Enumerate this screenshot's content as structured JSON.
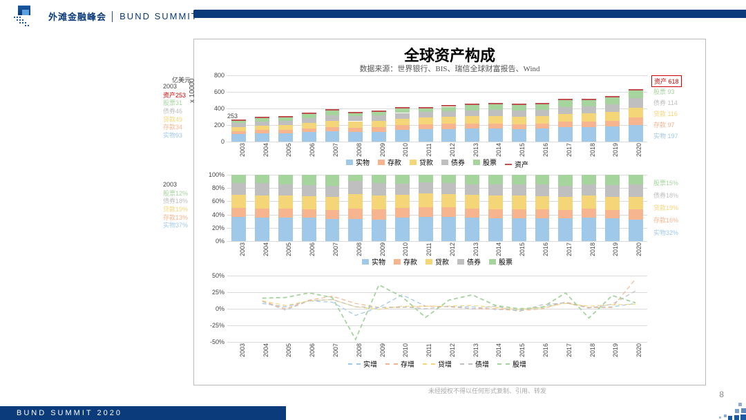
{
  "header": {
    "cn": "外滩金融峰会",
    "en": "BUND SUMMIT"
  },
  "title": "全球资产构成",
  "source": "数据来源：世界银行、BIS、瑞信全球财富报告、Wind",
  "y_unit": "亿美元",
  "y_mult": "x 10000",
  "years": [
    "2003",
    "2004",
    "2005",
    "2006",
    "2007",
    "2008",
    "2009",
    "2010",
    "2011",
    "2012",
    "2013",
    "2014",
    "2015",
    "2016",
    "2017",
    "2018",
    "2019",
    "2020"
  ],
  "palette": {
    "实物": "#a0c8e8",
    "存款": "#f6b58f",
    "贷款": "#f4d679",
    "债券": "#bfbfbf",
    "股票": "#a5d49d",
    "资产": "#c0504d",
    "grid": "#d9d9d9",
    "text": "#444"
  },
  "chart1": {
    "type": "stacked-bar-abs",
    "ylim": [
      0,
      800
    ],
    "ytick_step": 200,
    "first_label": "253",
    "series_order": [
      "实物",
      "存款",
      "贷款",
      "债券",
      "股票"
    ],
    "data": {
      "实物": [
        93,
        101,
        104,
        116,
        128,
        115,
        117,
        142,
        148,
        152,
        157,
        156,
        153,
        157,
        173,
        176,
        182,
        197
      ],
      "存款": [
        34,
        38,
        38,
        43,
        51,
        55,
        56,
        57,
        59,
        61,
        61,
        61,
        59,
        59,
        65,
        66,
        67,
        97
      ],
      "贷款": [
        49,
        55,
        58,
        65,
        74,
        76,
        75,
        78,
        81,
        84,
        88,
        90,
        89,
        91,
        98,
        102,
        108,
        116
      ],
      "债券": [
        46,
        51,
        50,
        56,
        64,
        66,
        67,
        69,
        69,
        72,
        72,
        75,
        72,
        76,
        83,
        84,
        90,
        114
      ],
      "股票": [
        31,
        36,
        42,
        52,
        61,
        33,
        45,
        53,
        46,
        52,
        63,
        66,
        66,
        67,
        83,
        71,
        85,
        93
      ]
    },
    "end_labels": [
      {
        "txt": "资产 618",
        "color": "#c00",
        "red": true
      },
      {
        "txt": "股票 93",
        "color": "#a5d49d"
      },
      {
        "txt": "债券 114",
        "color": "#bfbfbf"
      },
      {
        "txt": "贷款 116",
        "color": "#f4d679"
      },
      {
        "txt": "存款 97",
        "color": "#f6b58f"
      },
      {
        "txt": "实物 197",
        "color": "#a0c8e8"
      }
    ],
    "left_2003": {
      "title": "2003",
      "rows": [
        {
          "txt": "资产253",
          "color": "#c00"
        },
        {
          "txt": "股票31",
          "color": "#a5d49d"
        },
        {
          "txt": "债券46",
          "color": "#bfbfbf"
        },
        {
          "txt": "贷款49",
          "color": "#f4d679"
        },
        {
          "txt": "存款34",
          "color": "#f6b58f"
        },
        {
          "txt": "实物93",
          "color": "#a0c8e8"
        }
      ]
    }
  },
  "chart2": {
    "type": "stacked-bar-pct",
    "ylim": [
      0,
      100
    ],
    "ytick_step": 20,
    "series_order": [
      "实物",
      "存款",
      "贷款",
      "债券",
      "股票"
    ],
    "end_labels": [
      {
        "txt": "股票15%",
        "color": "#a5d49d"
      },
      {
        "txt": "债券18%",
        "color": "#bfbfbf"
      },
      {
        "txt": "贷款19%",
        "color": "#f4d679"
      },
      {
        "txt": "存款16%",
        "color": "#f6b58f"
      },
      {
        "txt": "实物32%",
        "color": "#a0c8e8"
      }
    ],
    "left_2003": {
      "title": "2003",
      "rows": [
        {
          "txt": "股票12%",
          "color": "#a5d49d"
        },
        {
          "txt": "债券18%",
          "color": "#bfbfbf"
        },
        {
          "txt": "贷款19%",
          "color": "#f4d679"
        },
        {
          "txt": "存款13%",
          "color": "#f6b58f"
        },
        {
          "txt": "实物37%",
          "color": "#a0c8e8"
        }
      ]
    }
  },
  "chart3": {
    "type": "line-growth",
    "ylim": [
      -50,
      50
    ],
    "ytick_step": 25,
    "series": {
      "实增": {
        "color": "#a0c8e8",
        "dash": "6,4",
        "values": [
          null,
          8,
          3,
          12,
          10,
          -10,
          2,
          21,
          4,
          3,
          3,
          -1,
          -2,
          3,
          10,
          2,
          3,
          8
        ]
      },
      "存增": {
        "color": "#f6b58f",
        "dash": "6,4",
        "values": [
          null,
          12,
          0,
          13,
          19,
          8,
          2,
          2,
          4,
          3,
          0,
          0,
          -3,
          0,
          10,
          2,
          2,
          45
        ]
      },
      "贷增": {
        "color": "#f4d679",
        "dash": "6,4",
        "values": [
          null,
          12,
          5,
          12,
          14,
          3,
          -1,
          4,
          4,
          4,
          5,
          2,
          -1,
          2,
          8,
          4,
          6,
          7
        ]
      },
      "债增": {
        "color": "#bfbfbf",
        "dash": "6,4",
        "values": [
          null,
          11,
          -2,
          12,
          14,
          3,
          2,
          3,
          0,
          4,
          0,
          4,
          -4,
          6,
          9,
          1,
          7,
          27
        ]
      },
      "股增": {
        "color": "#a5d49d",
        "dash": "6,4",
        "values": [
          null,
          16,
          17,
          24,
          17,
          -46,
          36,
          18,
          -13,
          13,
          21,
          5,
          0,
          2,
          24,
          -14,
          20,
          9
        ]
      }
    }
  },
  "legend1": [
    "实物",
    "存款",
    "贷款",
    "债券",
    "股票",
    "资产"
  ],
  "legend2": [
    "实物",
    "存款",
    "贷款",
    "债券",
    "股票"
  ],
  "legend3": [
    "实增",
    "存增",
    "贷增",
    "债增",
    "股增"
  ],
  "footer": "BUND SUMMIT 2020",
  "copyright": "未经授权不得以任何形式复制、引用、转发",
  "page": "8"
}
